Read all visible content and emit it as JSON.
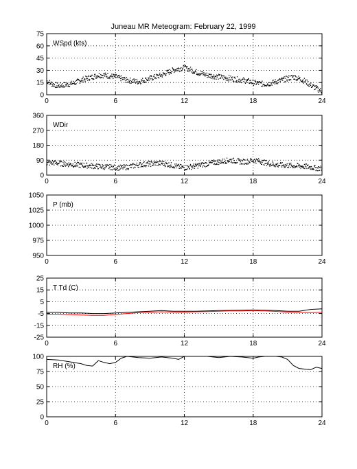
{
  "chart_data": {
    "title": "Juneau MR Meteogram:  February 22, 1999",
    "x_ticks": [
      0,
      6,
      12,
      18,
      24
    ],
    "xlim": [
      0,
      24
    ],
    "grid": true,
    "panels": [
      {
        "id": "wspd",
        "type": "scatter",
        "label": "WSpd (kts)",
        "ylim": [
          0,
          75
        ],
        "y_ticks": [
          0,
          15,
          30,
          45,
          60,
          75
        ],
        "series": [
          {
            "color": "#000000",
            "style": "dots",
            "x": [
              0,
              0.5,
              1,
              1.5,
              2,
              2.5,
              3,
              3.5,
              4,
              4.5,
              5,
              5.5,
              6,
              6.5,
              7,
              7.5,
              8,
              8.5,
              9,
              9.5,
              10,
              10.5,
              11,
              11.5,
              12,
              12.5,
              13,
              13.5,
              14,
              14.5,
              15,
              15.5,
              16,
              16.5,
              17,
              17.5,
              18,
              18.5,
              19,
              19.5,
              20,
              20.5,
              21,
              21.5,
              22,
              22.5,
              23,
              23.5,
              24
            ],
            "y": [
              17,
              13,
              11,
              12,
              13,
              15,
              18,
              20,
              22,
              24,
              24,
              23,
              22,
              20,
              18,
              17,
              16,
              18,
              20,
              22,
              24,
              27,
              30,
              32,
              33,
              31,
              28,
              26,
              24,
              23,
              22,
              21,
              20,
              19,
              18,
              17,
              15,
              14,
              13,
              14,
              16,
              18,
              20,
              22,
              20,
              17,
              12,
              8,
              4
            ]
          }
        ]
      },
      {
        "id": "wdir",
        "type": "scatter",
        "label": "WDir",
        "ylim": [
          0,
          360
        ],
        "y_ticks": [
          0,
          90,
          180,
          270,
          360
        ],
        "series": [
          {
            "color": "#000000",
            "style": "dots",
            "x": [
              0,
              0.5,
              1,
              1.5,
              2,
              2.5,
              3,
              3.5,
              4,
              4.5,
              5,
              5.5,
              6,
              6.5,
              7,
              7.5,
              8,
              8.5,
              9,
              9.5,
              10,
              10.5,
              11,
              11.5,
              12,
              12.5,
              13,
              13.5,
              14,
              14.5,
              15,
              15.5,
              16,
              16.5,
              17,
              17.5,
              18,
              18.5,
              19,
              19.5,
              20,
              20.5,
              21,
              21.5,
              22,
              22.5,
              23,
              23.5,
              24
            ],
            "y": [
              70,
              75,
              72,
              68,
              65,
              62,
              60,
              58,
              55,
              52,
              50,
              48,
              46,
              45,
              48,
              55,
              62,
              66,
              68,
              70,
              72,
              65,
              58,
              50,
              45,
              50,
              55,
              62,
              68,
              75,
              80,
              85,
              90,
              85,
              80,
              82,
              90,
              85,
              75,
              68,
              62,
              60,
              58,
              56,
              55,
              52,
              48,
              42,
              40
            ]
          }
        ]
      },
      {
        "id": "pres",
        "type": "line",
        "label": "P (mb)",
        "ylim": [
          950,
          1050
        ],
        "y_ticks": [
          950,
          975,
          1000,
          1025,
          1050
        ],
        "series": []
      },
      {
        "id": "temp",
        "type": "line",
        "label": "T Td (C)",
        "ylim": [
          -25,
          25
        ],
        "y_ticks": [
          -25,
          -15,
          -5,
          5,
          15,
          25
        ],
        "series": [
          {
            "color": "#000000",
            "x": [
              0,
              1,
              2,
              3,
              4,
              5,
              6,
              7,
              8,
              9,
              10,
              11,
              12,
              13,
              14,
              15,
              16,
              17,
              18,
              19,
              20,
              21,
              22,
              23,
              24
            ],
            "y": [
              -4,
              -4,
              -4.5,
              -4.5,
              -5,
              -5,
              -4.5,
              -4,
              -3.5,
              -3,
              -2.5,
              -3,
              -3,
              -3,
              -2.8,
              -2.5,
              -2.3,
              -2.2,
              -2,
              -2.2,
              -2.5,
              -3,
              -3,
              -1.5,
              -1
            ]
          },
          {
            "color": "#ff0000",
            "x": [
              0,
              1,
              2,
              3,
              4,
              5,
              6,
              7,
              8,
              9,
              10,
              11,
              12,
              13,
              14,
              15,
              16,
              17,
              18,
              19,
              20,
              21,
              22,
              23,
              24
            ],
            "y": [
              -5.5,
              -5.5,
              -6,
              -6.3,
              -6.5,
              -6.5,
              -5.8,
              -5,
              -4.2,
              -3.8,
              -3.5,
              -3.7,
              -3.8,
              -3.5,
              -3.3,
              -3,
              -2.8,
              -2.8,
              -2.5,
              -2.8,
              -3.2,
              -3.8,
              -4,
              -4.2,
              -4
            ]
          }
        ]
      },
      {
        "id": "rh",
        "type": "line",
        "label": "RH (%)",
        "ylim": [
          0,
          100
        ],
        "y_ticks": [
          0,
          25,
          50,
          75,
          100
        ],
        "series": [
          {
            "color": "#000000",
            "x": [
              0,
              1,
              2,
              3,
              3.5,
              4,
              4.5,
              5,
              5.5,
              6,
              6.5,
              7,
              8,
              9,
              10,
              11,
              11.5,
              12,
              13,
              14,
              15,
              16,
              17,
              18,
              18.5,
              19,
              20,
              20.5,
              21,
              21.5,
              22,
              23,
              23.5,
              24
            ],
            "y": [
              95,
              94,
              91,
              88,
              85,
              84,
              93,
              90,
              88,
              90,
              97,
              100,
              98,
              97,
              99,
              97,
              95,
              100,
              100,
              100,
              98,
              100,
              99,
              97,
              99,
              100,
              100,
              99,
              95,
              85,
              80,
              78,
              82,
              80
            ]
          }
        ]
      }
    ]
  }
}
